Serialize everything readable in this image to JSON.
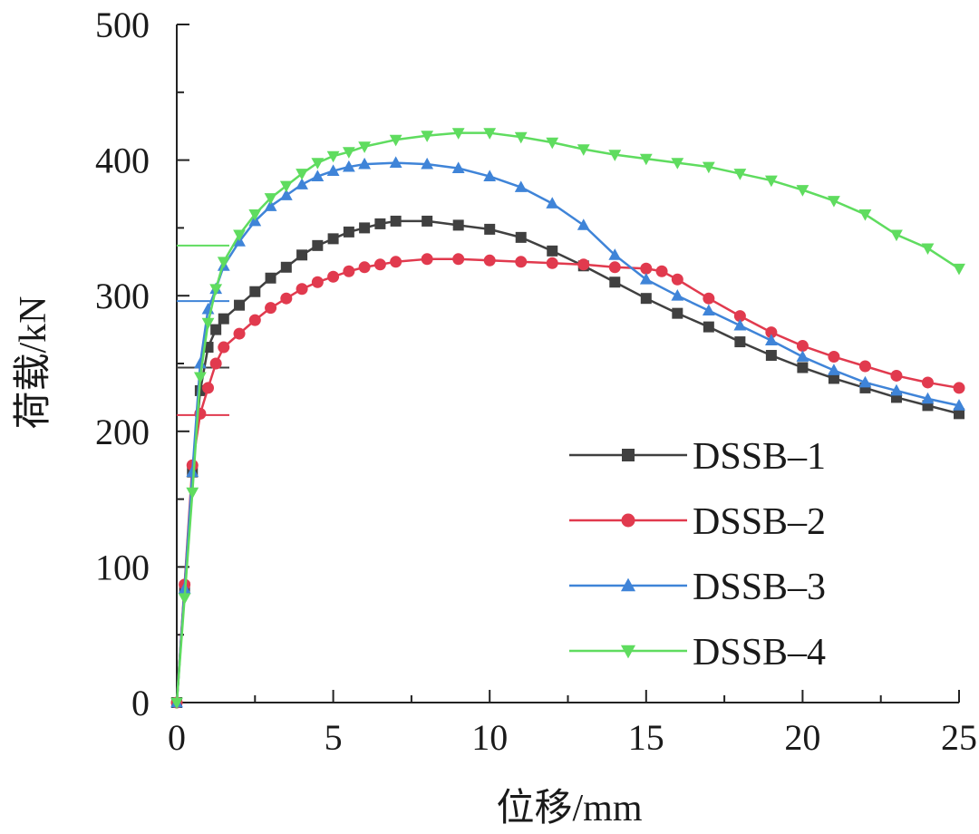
{
  "chart_data": {
    "type": "line",
    "title": "",
    "xlabel": "位移/mm",
    "ylabel": "荷载/kN",
    "xlim": [
      0,
      25
    ],
    "ylim": [
      0,
      500
    ],
    "xticks": [
      0,
      5,
      10,
      15,
      20,
      25
    ],
    "yticks": [
      0,
      100,
      200,
      300,
      400,
      500
    ],
    "xtick_labels": [
      "0",
      "5",
      "10",
      "15",
      "20",
      "25"
    ],
    "ytick_labels": [
      "0",
      "100",
      "200",
      "300",
      "400",
      "500"
    ],
    "grid": false,
    "legend_position": "bottom-right",
    "series": [
      {
        "name": "DSSB–1",
        "color": "#404040",
        "marker": "square",
        "yield_load": 247,
        "points": [
          [
            0,
            0
          ],
          [
            0.25,
            85
          ],
          [
            0.5,
            170
          ],
          [
            0.75,
            230
          ],
          [
            1.0,
            262
          ],
          [
            1.25,
            275
          ],
          [
            1.5,
            283
          ],
          [
            2.0,
            293
          ],
          [
            2.5,
            303
          ],
          [
            3.0,
            313
          ],
          [
            3.5,
            321
          ],
          [
            4.0,
            330
          ],
          [
            4.5,
            337
          ],
          [
            5.0,
            342
          ],
          [
            5.5,
            347
          ],
          [
            6.0,
            350
          ],
          [
            6.5,
            353
          ],
          [
            7.0,
            355
          ],
          [
            8.0,
            355
          ],
          [
            9.0,
            352
          ],
          [
            10.0,
            349
          ],
          [
            11.0,
            343
          ],
          [
            12.0,
            333
          ],
          [
            13.0,
            322
          ],
          [
            14.0,
            310
          ],
          [
            15.0,
            298
          ],
          [
            16.0,
            287
          ],
          [
            17.0,
            277
          ],
          [
            18.0,
            266
          ],
          [
            19.0,
            256
          ],
          [
            20.0,
            247
          ],
          [
            21.0,
            239
          ],
          [
            22.0,
            232
          ],
          [
            23.0,
            225
          ],
          [
            24.0,
            219
          ],
          [
            25.0,
            213
          ]
        ]
      },
      {
        "name": "DSSB–2",
        "color": "#e13a4e",
        "marker": "circle",
        "yield_load": 212,
        "points": [
          [
            0,
            0
          ],
          [
            0.25,
            87
          ],
          [
            0.5,
            175
          ],
          [
            0.75,
            213
          ],
          [
            1.0,
            232
          ],
          [
            1.25,
            250
          ],
          [
            1.5,
            262
          ],
          [
            2.0,
            272
          ],
          [
            2.5,
            282
          ],
          [
            3.0,
            291
          ],
          [
            3.5,
            298
          ],
          [
            4.0,
            305
          ],
          [
            4.5,
            310
          ],
          [
            5.0,
            314
          ],
          [
            5.5,
            318
          ],
          [
            6.0,
            321
          ],
          [
            6.5,
            323
          ],
          [
            7.0,
            325
          ],
          [
            8.0,
            327
          ],
          [
            9.0,
            327
          ],
          [
            10.0,
            326
          ],
          [
            11.0,
            325
          ],
          [
            12.0,
            324
          ],
          [
            13.0,
            323
          ],
          [
            14.0,
            321
          ],
          [
            15.0,
            320
          ],
          [
            15.5,
            318
          ],
          [
            16.0,
            312
          ],
          [
            17.0,
            298
          ],
          [
            18.0,
            285
          ],
          [
            19.0,
            273
          ],
          [
            20.0,
            263
          ],
          [
            21.0,
            255
          ],
          [
            22.0,
            248
          ],
          [
            23.0,
            241
          ],
          [
            24.0,
            236
          ],
          [
            25.0,
            232
          ]
        ]
      },
      {
        "name": "DSSB–3",
        "color": "#3f84d8",
        "marker": "triangle-up",
        "yield_load": 296,
        "points": [
          [
            0,
            0
          ],
          [
            0.25,
            84
          ],
          [
            0.5,
            170
          ],
          [
            0.75,
            250
          ],
          [
            1.0,
            290
          ],
          [
            1.25,
            305
          ],
          [
            1.5,
            322
          ],
          [
            2.0,
            340
          ],
          [
            2.5,
            355
          ],
          [
            3.0,
            366
          ],
          [
            3.5,
            374
          ],
          [
            4.0,
            382
          ],
          [
            4.5,
            388
          ],
          [
            5.0,
            392
          ],
          [
            5.5,
            395
          ],
          [
            6.0,
            397
          ],
          [
            7.0,
            398
          ],
          [
            8.0,
            397
          ],
          [
            9.0,
            394
          ],
          [
            10.0,
            388
          ],
          [
            11.0,
            380
          ],
          [
            12.0,
            368
          ],
          [
            13.0,
            352
          ],
          [
            14.0,
            330
          ],
          [
            15.0,
            312
          ],
          [
            16.0,
            300
          ],
          [
            17.0,
            289
          ],
          [
            18.0,
            278
          ],
          [
            19.0,
            267
          ],
          [
            20.0,
            255
          ],
          [
            21.0,
            245
          ],
          [
            22.0,
            236
          ],
          [
            23.0,
            230
          ],
          [
            24.0,
            224
          ],
          [
            25.0,
            219
          ]
        ]
      },
      {
        "name": "DSSB–4",
        "color": "#5fdc5f",
        "marker": "triangle-down",
        "yield_load": 337,
        "points": [
          [
            0,
            0
          ],
          [
            0.25,
            77
          ],
          [
            0.5,
            155
          ],
          [
            0.75,
            240
          ],
          [
            1.0,
            280
          ],
          [
            1.25,
            305
          ],
          [
            1.5,
            325
          ],
          [
            2.0,
            345
          ],
          [
            2.5,
            360
          ],
          [
            3.0,
            372
          ],
          [
            3.5,
            381
          ],
          [
            4.0,
            390
          ],
          [
            4.5,
            398
          ],
          [
            5.0,
            403
          ],
          [
            5.5,
            406
          ],
          [
            6.0,
            410
          ],
          [
            7.0,
            415
          ],
          [
            8.0,
            418
          ],
          [
            9.0,
            420
          ],
          [
            10.0,
            420
          ],
          [
            11.0,
            417
          ],
          [
            12.0,
            413
          ],
          [
            13.0,
            408
          ],
          [
            14.0,
            404
          ],
          [
            15.0,
            401
          ],
          [
            16.0,
            398
          ],
          [
            17.0,
            395
          ],
          [
            18.0,
            390
          ],
          [
            19.0,
            385
          ],
          [
            20.0,
            378
          ],
          [
            21.0,
            370
          ],
          [
            22.0,
            360
          ],
          [
            23.0,
            345
          ],
          [
            24.0,
            335
          ],
          [
            25.0,
            320
          ]
        ]
      }
    ]
  }
}
